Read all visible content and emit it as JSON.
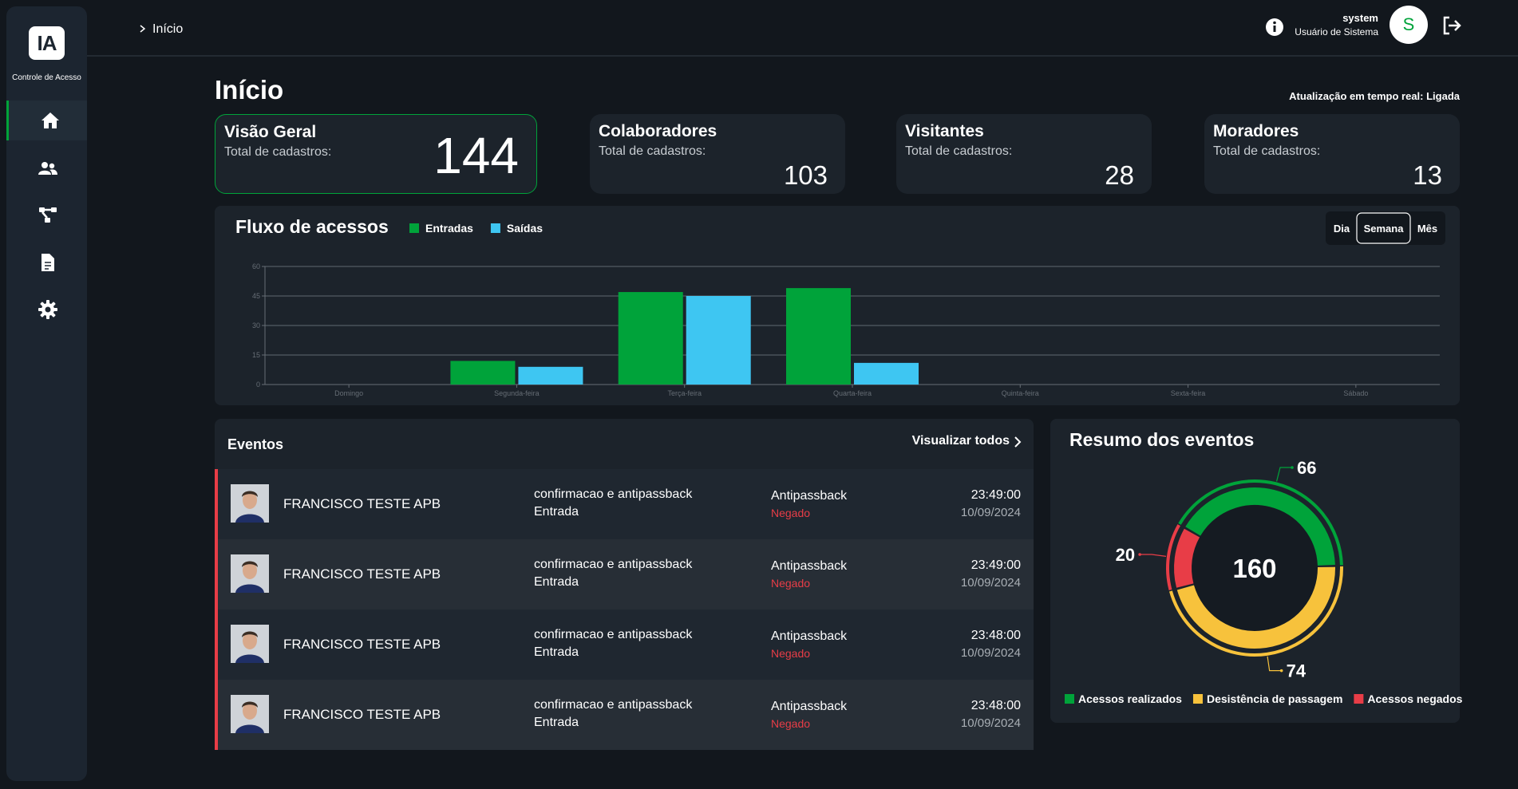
{
  "sidebar": {
    "logo": "IA",
    "app_name": "Controle de Acesso"
  },
  "header": {
    "breadcrumb": "Início",
    "user_name": "system",
    "user_role": "Usuário de Sistema",
    "avatar_initial": "S"
  },
  "page_title": "Início",
  "realtime_status": "Atualização em tempo real: Ligada",
  "cards": [
    {
      "title": "Visão Geral",
      "subtitle": "Total de cadastros:",
      "value": 144
    },
    {
      "title": "Colaboradores",
      "subtitle": "Total de cadastros:",
      "value": 103
    },
    {
      "title": "Visitantes",
      "subtitle": "Total de cadastros:",
      "value": 28
    },
    {
      "title": "Moradores",
      "subtitle": "Total de cadastros:",
      "value": 13
    }
  ],
  "chart_data": [
    {
      "type": "bar",
      "title": "Fluxo de acessos",
      "categories": [
        "Domingo",
        "Segunda-feira",
        "Terça-feira",
        "Quarta-feira",
        "Quinta-feira",
        "Sexta-feira",
        "Sábado"
      ],
      "series": [
        {
          "name": "Entradas",
          "color": "#00a33a",
          "values": [
            0,
            12,
            47,
            49,
            0,
            0,
            0
          ]
        },
        {
          "name": "Saídas",
          "color": "#3ec6f2",
          "values": [
            0,
            9,
            45,
            11,
            0,
            0,
            0
          ]
        }
      ],
      "ylim": [
        0,
        60
      ],
      "yticks": [
        0,
        15,
        30,
        45,
        60
      ],
      "grid": true,
      "period_options": [
        "Dia",
        "Semana",
        "Mês"
      ],
      "selected_period": 1
    },
    {
      "type": "donut",
      "title": "Resumo dos eventos",
      "categories": [
        "Acessos realizados",
        "Desistência de passagem",
        "Acessos negados"
      ],
      "values": [
        66,
        74,
        20
      ],
      "colors": [
        "#00a33a",
        "#f7c23c",
        "#e83d47"
      ],
      "total": 160
    }
  ],
  "events": {
    "title": "Eventos",
    "view_all": "Visualizar todos",
    "rows": [
      {
        "name": "FRANCISCO TESTE APB",
        "rule": "confirmacao e antipassback",
        "direction": "Entrada",
        "type": "Antipassback",
        "status": "Negado",
        "time": "23:49:00",
        "date": "10/09/2024"
      },
      {
        "name": "FRANCISCO TESTE APB",
        "rule": "confirmacao e antipassback",
        "direction": "Entrada",
        "type": "Antipassback",
        "status": "Negado",
        "time": "23:49:00",
        "date": "10/09/2024"
      },
      {
        "name": "FRANCISCO TESTE APB",
        "rule": "confirmacao e antipassback",
        "direction": "Entrada",
        "type": "Antipassback",
        "status": "Negado",
        "time": "23:48:00",
        "date": "10/09/2024"
      },
      {
        "name": "FRANCISCO TESTE APB",
        "rule": "confirmacao e antipassback",
        "direction": "Entrada",
        "type": "Antipassback",
        "status": "Negado",
        "time": "23:48:00",
        "date": "10/09/2024"
      }
    ]
  }
}
